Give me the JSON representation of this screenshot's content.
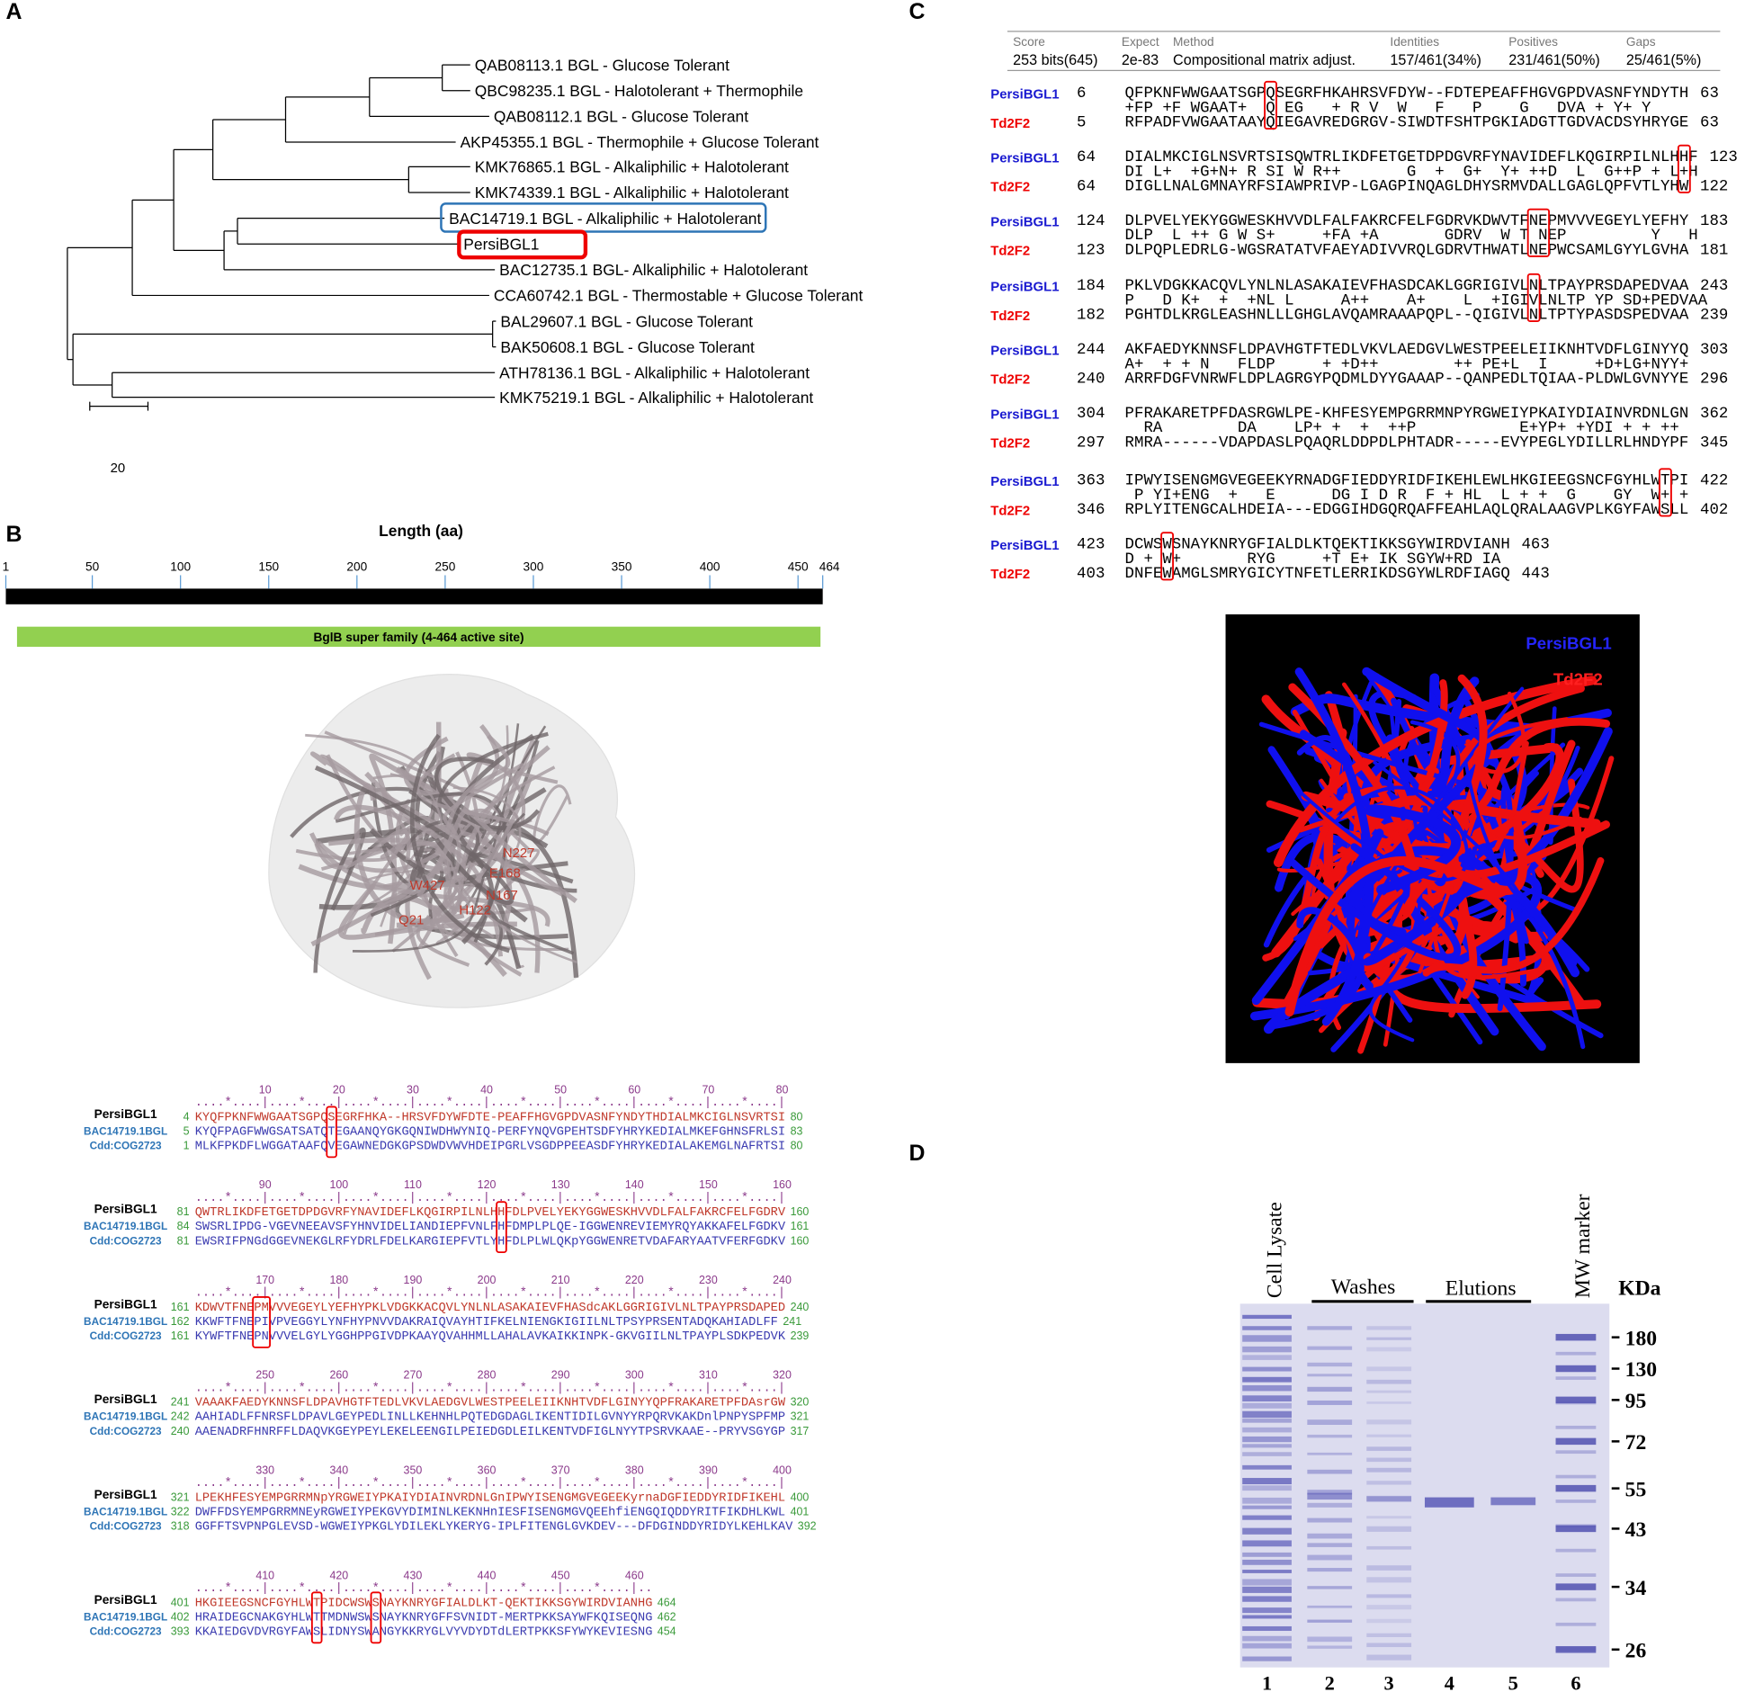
{
  "panel_a": {
    "label": "A",
    "leaves": [
      "QAB08113.1 BGL - Glucose Tolerant",
      "QBC98235.1 BGL - Halotolerant + Thermophile",
      "QAB08112.1 BGL - Glucose Tolerant",
      "AKP45355.1 BGL - Thermophile + Glucose Tolerant",
      "KMK76865.1 BGL - Alkaliphilic + Halotolerant",
      "KMK74339.1 BGL - Alkaliphilic + Halotolerant",
      "BAC14719.1 BGL - Alkaliphilic + Halotolerant",
      "PersiBGL1",
      "BAC12735.1 BGL- Alkaliphilic + Halotolerant",
      "CCA60742.1 BGL - Thermostable + Glucose Tolerant",
      "BAL29607.1 BGL - Glucose Tolerant",
      "BAK50608.1 BGL - Glucose Tolerant",
      "ATH78136.1 BGL - Alkaliphilic + Halotolerant",
      "KMK75219.1 BGL - Alkaliphilic + Halotolerant"
    ],
    "scale": 20
  },
  "panel_b": {
    "label": "B",
    "axis_title": "Length (aa)",
    "ticks": [
      1,
      50,
      100,
      150,
      200,
      250,
      300,
      350,
      400,
      450,
      464
    ],
    "domain": "BglB super family (4-464 active site)",
    "residues": [
      "N227",
      "E168",
      "W427",
      "N167",
      "H122",
      "Q21"
    ],
    "blocks": [
      {
        "ruler": [
          10,
          20,
          30,
          40,
          50,
          60,
          70,
          80
        ],
        "marks": "....*....|....*....|....*....|....*....|....*....|....*....|....*....|....*....|",
        "rows": [
          {
            "name": "PersiBGL1",
            "start": 4,
            "seq": "KYQFPKNFWWGAATSGPQSEGRFHKA--HRSVFDYWFDTE-PEAFFHGVGPDVASNFYNDYTHDIALMKCIGLNSVRTSI",
            "end": 80
          },
          {
            "name": "BAC14719.1BGL",
            "start": 5,
            "seq": "KYQFPAGFWWGSATSATQTEGAANQYGKGQNIWDHWYNIQ-PERFYNQVGPEHTSDFYHRYKEDIALMKEFGHNSFRLSI",
            "end": 83
          },
          {
            "name": "Cdd:COG2723",
            "start": 1,
            "seq": "MLKFPKDFLWGGATAAFQVEGAWNEDGKGPSDWDVWVHDEIPGRLVSGDPPEEASDFYHRYKEDIALAKEMGLNAFRTSI",
            "end": 80
          }
        ]
      },
      {
        "ruler": [
          90,
          100,
          110,
          120,
          130,
          140,
          150,
          160
        ],
        "marks": "....*....|....*....|....*....|....*....|....*....|....*....|....*....|....*....|",
        "rows": [
          {
            "name": "PersiBGL1",
            "start": 81,
            "seq": "QWTRLIKDFETGETDPDGVRFYNAVIDEFLKQGIRPILNLHHFDLPVELYEKYGGWESKHVVDLFALFAKRCFELFGDRV",
            "end": 160
          },
          {
            "name": "BAC14719.1BGL",
            "start": 84,
            "seq": "SWSRLIPDG-VGEVNEEAVSFYHNVIDELIANDIEPFVNLFHFDMPLPLQE-IGGWENREVIEMYRQYAKKAFELFGDKV",
            "end": 161
          },
          {
            "name": "Cdd:COG2723",
            "start": 81,
            "seq": "EWSRIFPNGdGGEVNEKGLRFYDRLFDELKARGIEPFVTLYHFDLPLWLQKpYGGWENRETVDAFARYAATVFERFGDKV",
            "end": 160
          }
        ]
      },
      {
        "ruler": [
          170,
          180,
          190,
          200,
          210,
          220,
          230,
          240
        ],
        "marks": "....*....|....*....|....*....|....*....|....*....|....*....|....*....|....*....|",
        "rows": [
          {
            "name": "PersiBGL1",
            "start": 161,
            "seq": "KDWVTFNEPMVVVEGEYLYEFHYPKLVDGKKACQVLYNLNLASAKAIEVFHASdcAKLGGRIGIVLNLTPAYPRSDAPED",
            "end": 240
          },
          {
            "name": "BAC14719.1BGL",
            "start": 162,
            "seq": "KKWFTFNEPIVPVEGGYLYNFHYPNVVDAKRAIQVAYHTIFKELNIENGKIGIILNLTPSYPRSENTADQKAHIADLFF",
            "end": 241
          },
          {
            "name": "Cdd:COG2723",
            "start": 161,
            "seq": "KYWFTFNEPNVVVELGYLYGGHPPGIVDPKAAYQVAHHMLLAHALAVKAIKKINPK-GKVGIILNLTPAYPLSDKPEDVK",
            "end": 239
          }
        ]
      },
      {
        "ruler": [
          250,
          260,
          270,
          280,
          290,
          300,
          310,
          320
        ],
        "marks": "....*....|....*....|....*....|....*....|....*....|....*....|....*....|....*....|",
        "rows": [
          {
            "name": "PersiBGL1",
            "start": 241,
            "seq": "VAAAKFAEDYKNNSFLDPAVHGTFTEDLVKVLAEDGVLWESTPEELEIIKNHTVDFLGINYYQPFRAKARETPFDAsrGW",
            "end": 320
          },
          {
            "name": "BAC14719.1BGL",
            "start": 242,
            "seq": "AAHIADLFFNRSFLDPAVLGEYPEDLINLLKEHNHLPQTEDGDAGLIKENTIDILGVNYYRPQRVKAKDnlPNPYSPFMP",
            "end": 321
          },
          {
            "name": "Cdd:COG2723",
            "start": 240,
            "seq": "AAENADRFHNRFFLDAQVKGEYPEYLEKELEENGILPEIEDGDLEILKENTVDFIGLNYYTPSRVKAAE--PRYVSGYGP",
            "end": 317
          }
        ]
      },
      {
        "ruler": [
          330,
          340,
          350,
          360,
          370,
          380,
          390,
          400
        ],
        "marks": "....*....|....*....|....*....|....*....|....*....|....*....|....*....|....*....|",
        "rows": [
          {
            "name": "PersiBGL1",
            "start": 321,
            "seq": "LPEKHFESYEMPGRRMNpYRGWEIYPKAIYDIAINVRDNLGnIPWYISENGMGVEGEEKyrnaDGFIEDDYRIDFIKEHL",
            "end": 400
          },
          {
            "name": "BAC14719.1BGL",
            "start": 322,
            "seq": "DWFFDSYEMPGRRMNEyRGWEIYPEKGVYDIMINLKEKNHnIESFISENGMGVQEEhfiENGQIQDDYRITFIKDHLKWL",
            "end": 401
          },
          {
            "name": "Cdd:COG2723",
            "start": 318,
            "seq": "GGFFTSVPNPGLEVSD-WGWEIYPKGLYDILEKLYKERYG-IPLFITENGLGVKDEV---DFDGINDDYRIDYLKEHLKAV",
            "end": 392
          }
        ]
      },
      {
        "ruler": [
          410,
          420,
          430,
          440,
          450,
          460
        ],
        "marks": "....*....|....*....|....*....|....*....|....*....|....*....|..",
        "rows": [
          {
            "name": "PersiBGL1",
            "start": 401,
            "seq": "HKGIEEGSNCFGYHLWTPIDCWSWSNAYKNRYGFIALDLKT-QEKTIKKSGYWIRDVIANHG",
            "end": 464
          },
          {
            "name": "BAC14719.1BGL",
            "start": 402,
            "seq": "HRAIDEGCNAKGYHLWTTMDNWSWSNAYKNRYGFFSVNIDT-MERTPKKSAYWFKQISEQNG",
            "end": 462
          },
          {
            "name": "Cdd:COG2723",
            "start": 393,
            "seq": "KKAIEDGVDVRGYFAWSLIDNYSWANGYKKRYGLVYVDYDTdLERTPKKSFYWYKEVIESNG",
            "end": 454
          }
        ]
      }
    ]
  },
  "panel_c": {
    "label": "C",
    "header": {
      "labels": [
        "Score",
        "Expect",
        "Method",
        "Identities",
        "Positives",
        "Gaps"
      ],
      "values": [
        "253 bits(645)",
        "2e-83",
        "Compositional matrix adjust.",
        "157/461(34%)",
        "231/461(50%)",
        "25/461(5%)"
      ]
    },
    "blocks": [
      {
        "query": {
          "name": "PersiBGL1",
          "start": 6,
          "seq": "QFPKNFWWGAATSGPQSEGRFHKAHRSVFDYW--FDTEPEAFFHGVGPDVASNFYNDYTH",
          "end": 63
        },
        "match": "+FP +F WGAAT+  Q EG   + R V  W   F   P    G   DVA + Y+ Y  ",
        "subject": {
          "name": "Td2F2",
          "start": 5,
          "seq": "RFPADFVWGAATAAYQIEGAVREDGRGV-SIWDTFSHTPGKIADGTTGDVACDSYHRYGE",
          "end": 63
        }
      },
      {
        "query": {
          "name": "PersiBGL1",
          "start": 64,
          "seq": "DIALMKCIGLNSVRTSISQWTRLIKDFETGETDPDGVRFYNAVIDEFLKQGIRPILNLHHF",
          "end": 123
        },
        "match": "DI L+  +G+N+ R SI W R++       G  +  G+  Y+ ++D  L  G++P + L+H",
        "subject": {
          "name": "Td2F2",
          "start": 64,
          "seq": "DIGLLNALGMNAYRFSIAWPRIVP-LGAGPINQAGLDHYSRMVDALLGAGLQPFVTLYHW",
          "end": 122
        }
      },
      {
        "query": {
          "name": "PersiBGL1",
          "start": 124,
          "seq": "DLPVELYEKYGGWESKHVVDLFALFAKRCFELFGDRVKDWVTFNEPMVVVEGEYLYEFHY",
          "end": 183
        },
        "match": "DLP  L ++ G W S+     +FA +A       GDRV  W T NEP         Y   H",
        "subject": {
          "name": "Td2F2",
          "start": 123,
          "seq": "DLPQPLEDRLG-WGSRATATVFAEYADIVVRQLGDRVTHWATLNEPWCSAMLGYYLGVHA",
          "end": 181
        }
      },
      {
        "query": {
          "name": "PersiBGL1",
          "start": 184,
          "seq": "PKLVDGKKACQVLYNLNLASAKAIEVFHASDCAKLGGRIGIVLNLTPAYPRSDAPEDVAA",
          "end": 243
        },
        "match": "P   D K+  +  +NL L     A++    A+    L  +IGIVLNLTP YP SD+PEDVAA",
        "subject": {
          "name": "Td2F2",
          "start": 182,
          "seq": "PGHTDLKRGLEASHNLLLGHGLAVQAMRAAAPQPL--QIGIVLNLTPTYPASDSPEDVAA",
          "end": 239
        }
      },
      {
        "query": {
          "name": "PersiBGL1",
          "start": 244,
          "seq": "AKFAEDYKNNSFLDPAVHGTFTEDLVKVLAEDGVLWESTPEELEIIKNHTVDFLGINYYQ",
          "end": 303
        },
        "match": "A+  + + N   FLDP     + +D++        ++ PE+L  I     +D+LG+NYY+",
        "subject": {
          "name": "Td2F2",
          "start": 240,
          "seq": "ARRFDGFVNRWFLDPLAGRGYPQDMLDYYGAAAP--QANPEDLTQIAA-PLDWLGVNYYE",
          "end": 296
        }
      },
      {
        "query": {
          "name": "PersiBGL1",
          "start": 304,
          "seq": "PFRAKARETPFDASRGWLPE-KHFESYEMPGRRMNPYRGWEIYPKAIYDIAINVRDNLGN",
          "end": 362
        },
        "match": "  RA        DA    LP+ +  +  ++P           E+YP+ +YDI + + ++",
        "subject": {
          "name": "Td2F2",
          "start": 297,
          "seq": "RMRA------VDAPDASLPQAQRLDDPDLPHTADR-----EVYPEGLYDILLRLHNDYPF",
          "end": 345
        }
      },
      {
        "query": {
          "name": "PersiBGL1",
          "start": 363,
          "seq": "IPWYISENGMGVEGEEKYRNADGFIEDDYRIDFIKEHLEWLHKGIEEGSNCFGYHLWTPI",
          "end": 422
        },
        "match": " P YI+ENG  +   E      DG I D R  F + HL  L + +  G    GY  W+ +",
        "subject": {
          "name": "Td2F2",
          "start": 346,
          "seq": "RPLYITENGCALHDEIA---EDGGIHDGQRQAFFEAHLAQLQRALAAGVPLKGYFAWSLL",
          "end": 402
        }
      },
      {
        "query": {
          "name": "PersiBGL1",
          "start": 423,
          "seq": "DCWSWSNAYKNRYGFIALDLKTQEKTIKKSGYWIRDVIANH",
          "end": 463
        },
        "match": "D + W+       RYG     +T E+ IK SGYW+RD IA",
        "subject": {
          "name": "Td2F2",
          "start": 403,
          "seq": "DNFEWAMGLSMRYGICYTNFETLERRIKDSGYWLRDFIAGQ",
          "end": 443
        }
      }
    ],
    "legend": [
      "PersiBGL1",
      "Td2F2"
    ]
  },
  "panel_d": {
    "label": "D",
    "cell_lysate": "Cell Lysate",
    "washes": "Washes",
    "elutions": "Elutions",
    "mw_marker": "MW marker",
    "unit": "KDa",
    "markers": [
      180,
      130,
      95,
      72,
      55,
      43,
      34,
      26
    ],
    "lanes": [
      1,
      2,
      3,
      4,
      5,
      6
    ]
  }
}
